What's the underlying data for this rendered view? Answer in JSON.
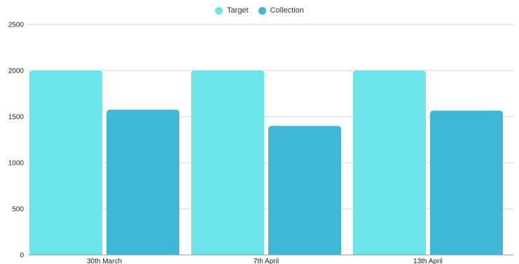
{
  "chart_data": {
    "type": "bar",
    "categories": [
      "30th March",
      "7th April",
      "13th April"
    ],
    "series": [
      {
        "name": "Target",
        "color": "#6ce5ea",
        "values": [
          2000,
          2000,
          2000
        ]
      },
      {
        "name": "Collection",
        "color": "#42b8d7",
        "values": [
          1575,
          1400,
          1565
        ]
      }
    ],
    "ylim": [
      0,
      2500
    ],
    "yticks": [
      0,
      500,
      1000,
      1500,
      2000,
      2500
    ],
    "grid": true,
    "legend": "top-center",
    "title": "",
    "xlabel": "",
    "ylabel": ""
  }
}
